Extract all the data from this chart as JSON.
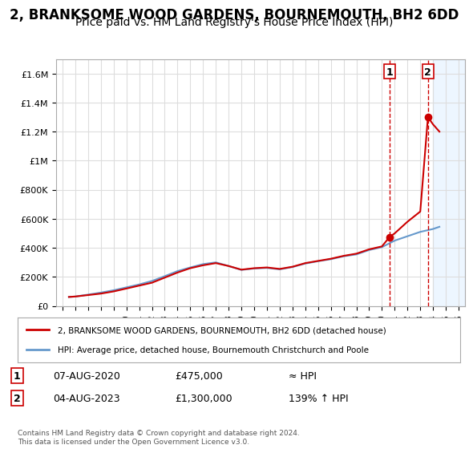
{
  "title": "2, BRANKSOME WOOD GARDENS, BOURNEMOUTH, BH2 6DD",
  "subtitle": "Price paid vs. HM Land Registry's House Price Index (HPI)",
  "title_fontsize": 12,
  "subtitle_fontsize": 10,
  "xlim": [
    1994.5,
    2026.5
  ],
  "ylim": [
    0,
    1700000
  ],
  "yticks": [
    0,
    200000,
    400000,
    600000,
    800000,
    1000000,
    1200000,
    1400000,
    1600000
  ],
  "ytick_labels": [
    "£0",
    "£200K",
    "£400K",
    "£600K",
    "£800K",
    "£1M",
    "£1.2M",
    "£1.4M",
    "£1.6M"
  ],
  "xticks": [
    1995,
    1996,
    1997,
    1998,
    1999,
    2000,
    2001,
    2002,
    2003,
    2004,
    2005,
    2006,
    2007,
    2008,
    2009,
    2010,
    2011,
    2012,
    2013,
    2014,
    2015,
    2016,
    2017,
    2018,
    2019,
    2020,
    2021,
    2022,
    2023,
    2024,
    2025,
    2026
  ],
  "red_line_x": [
    1995.5,
    1996.0,
    1997.0,
    1998.0,
    1999.0,
    2000.0,
    2001.0,
    2002.0,
    2003.0,
    2004.0,
    2005.0,
    2006.0,
    2007.0,
    2008.0,
    2009.0,
    2010.0,
    2011.0,
    2012.0,
    2013.0,
    2014.0,
    2015.0,
    2016.0,
    2017.0,
    2018.0,
    2019.0,
    2020.0,
    2020.6,
    2021.0,
    2022.0,
    2023.0,
    2023.6,
    2024.0,
    2024.5
  ],
  "red_line_y": [
    62000,
    65000,
    75000,
    85000,
    100000,
    120000,
    140000,
    160000,
    195000,
    230000,
    260000,
    280000,
    295000,
    275000,
    250000,
    260000,
    265000,
    255000,
    270000,
    295000,
    310000,
    325000,
    345000,
    360000,
    390000,
    410000,
    475000,
    500000,
    580000,
    650000,
    1300000,
    1250000,
    1200000
  ],
  "blue_line_x": [
    1995.5,
    1996.0,
    1997.0,
    1998.0,
    1999.0,
    2000.0,
    2001.0,
    2002.0,
    2003.0,
    2004.0,
    2005.0,
    2006.0,
    2007.0,
    2008.0,
    2009.0,
    2010.0,
    2011.0,
    2012.0,
    2013.0,
    2014.0,
    2015.0,
    2016.0,
    2017.0,
    2018.0,
    2019.0,
    2020.0,
    2021.0,
    2022.0,
    2023.0,
    2024.0,
    2024.5
  ],
  "blue_line_y": [
    62000,
    65000,
    78000,
    92000,
    108000,
    128000,
    148000,
    172000,
    205000,
    240000,
    265000,
    288000,
    300000,
    275000,
    248000,
    258000,
    262000,
    252000,
    268000,
    292000,
    308000,
    322000,
    342000,
    355000,
    385000,
    405000,
    450000,
    480000,
    510000,
    530000,
    545000
  ],
  "point1_x": 2020.6,
  "point1_y": 475000,
  "point1_label": "1",
  "point2_x": 2023.6,
  "point2_y": 1300000,
  "point2_label": "2",
  "red_color": "#cc0000",
  "blue_color": "#6699cc",
  "point_marker_color": "#cc0000",
  "dashed_line_color": "#cc0000",
  "legend_label_red": "2, BRANKSOME WOOD GARDENS, BOURNEMOUTH, BH2 6DD (detached house)",
  "legend_label_blue": "HPI: Average price, detached house, Bournemouth Christchurch and Poole",
  "table_row1": [
    "1",
    "07-AUG-2020",
    "£475,000",
    "≈ HPI"
  ],
  "table_row2": [
    "2",
    "04-AUG-2023",
    "£1,300,000",
    "139% ↑ HPI"
  ],
  "footnote": "Contains HM Land Registry data © Crown copyright and database right 2024.\nThis data is licensed under the Open Government Licence v3.0.",
  "bg_color": "#ffffff",
  "grid_color": "#dddddd",
  "shaded_region_color": "#ddeeff"
}
